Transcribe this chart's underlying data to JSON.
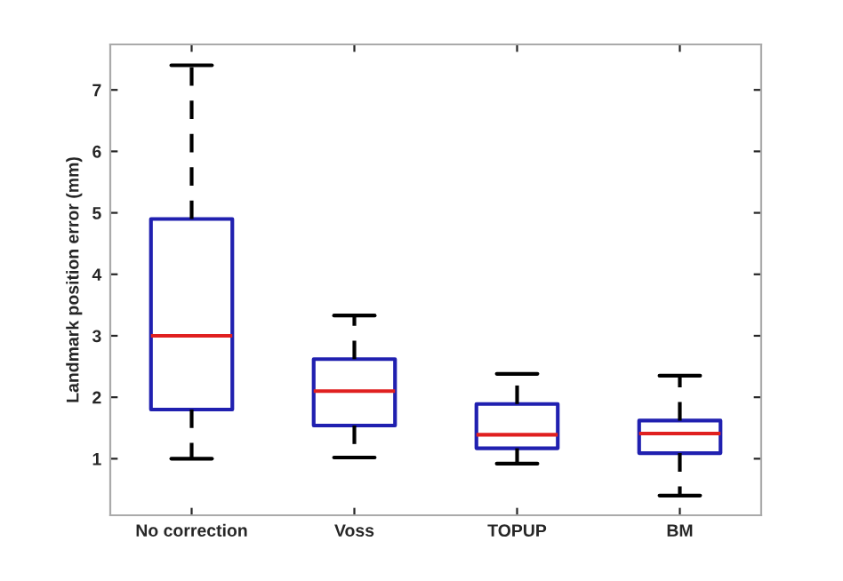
{
  "chart_data": {
    "type": "box",
    "ylabel": "Landmark position error (mm)",
    "categories": [
      "No correction",
      "Voss",
      "TOPUP",
      "BM"
    ],
    "series": [
      {
        "color": "#2020b0",
        "boxes": [
          {
            "low": 1.0,
            "q1": 1.8,
            "median": 3.0,
            "q3": 4.9,
            "high": 7.4
          },
          {
            "low": 1.02,
            "q1": 1.54,
            "median": 2.1,
            "q3": 2.62,
            "high": 3.33
          },
          {
            "low": 0.92,
            "q1": 1.17,
            "median": 1.39,
            "q3": 1.89,
            "high": 2.38
          },
          {
            "low": 0.4,
            "q1": 1.09,
            "median": 1.41,
            "q3": 1.62,
            "high": 2.35
          }
        ]
      }
    ],
    "ylim": [
      0.08,
      7.74
    ],
    "yticks": [
      1,
      2,
      3,
      4,
      5,
      6,
      7
    ],
    "grid": false,
    "line_style": "dashed"
  }
}
